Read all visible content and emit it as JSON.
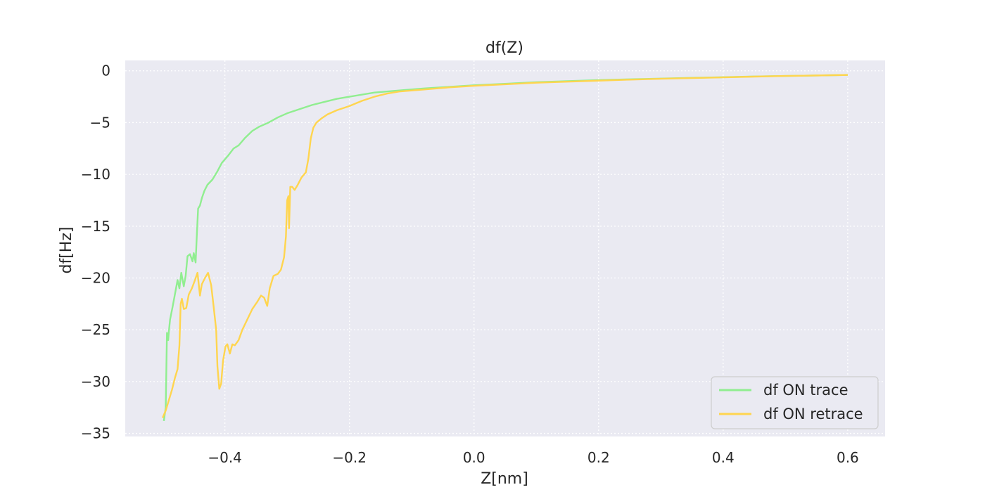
{
  "chart_data": {
    "type": "line",
    "title": "df(Z)",
    "xlabel": "Z[nm]",
    "ylabel": "df[Hz]",
    "xlim": [
      -0.56,
      0.66
    ],
    "ylim": [
      -35.3,
      1.0
    ],
    "x_ticks": [
      -0.4,
      -0.2,
      0.0,
      0.2,
      0.4,
      0.6
    ],
    "x_tick_labels": [
      "−0.4",
      "−0.2",
      "0.0",
      "0.2",
      "0.4",
      "0.6"
    ],
    "y_ticks": [
      0,
      -5,
      -10,
      -15,
      -20,
      -25,
      -30,
      -35
    ],
    "y_tick_labels": [
      "0",
      "−5",
      "−10",
      "−15",
      "−20",
      "−25",
      "−30",
      "−35"
    ],
    "grid": true,
    "legend_position": "lower-right",
    "colors": {
      "background": "#eaeaf2",
      "grid": "#ffffff"
    },
    "series": [
      {
        "name": "df ON trace",
        "color": "#90ee90",
        "points": [
          [
            -0.498,
            -33.8
          ],
          [
            -0.495,
            -32.5
          ],
          [
            -0.493,
            -25.3
          ],
          [
            -0.491,
            -26.0
          ],
          [
            -0.49,
            -25.2
          ],
          [
            -0.488,
            -24.0
          ],
          [
            -0.484,
            -22.8
          ],
          [
            -0.48,
            -21.5
          ],
          [
            -0.476,
            -20.2
          ],
          [
            -0.473,
            -21.0
          ],
          [
            -0.47,
            -19.5
          ],
          [
            -0.466,
            -20.8
          ],
          [
            -0.463,
            -19.8
          ],
          [
            -0.46,
            -17.9
          ],
          [
            -0.456,
            -17.7
          ],
          [
            -0.452,
            -18.4
          ],
          [
            -0.45,
            -17.6
          ],
          [
            -0.447,
            -18.5
          ],
          [
            -0.445,
            -15.8
          ],
          [
            -0.443,
            -13.3
          ],
          [
            -0.44,
            -13.0
          ],
          [
            -0.437,
            -12.3
          ],
          [
            -0.433,
            -11.6
          ],
          [
            -0.428,
            -11.0
          ],
          [
            -0.42,
            -10.5
          ],
          [
            -0.412,
            -9.7
          ],
          [
            -0.405,
            -8.9
          ],
          [
            -0.395,
            -8.2
          ],
          [
            -0.386,
            -7.5
          ],
          [
            -0.378,
            -7.2
          ],
          [
            -0.368,
            -6.5
          ],
          [
            -0.356,
            -5.8
          ],
          [
            -0.345,
            -5.4
          ],
          [
            -0.33,
            -5.0
          ],
          [
            -0.315,
            -4.5
          ],
          [
            -0.3,
            -4.1
          ],
          [
            -0.28,
            -3.7
          ],
          [
            -0.26,
            -3.3
          ],
          [
            -0.24,
            -3.0
          ],
          [
            -0.22,
            -2.7
          ],
          [
            -0.2,
            -2.5
          ],
          [
            -0.16,
            -2.1
          ],
          [
            -0.12,
            -1.9
          ],
          [
            -0.08,
            -1.7
          ],
          [
            -0.04,
            -1.55
          ],
          [
            0.0,
            -1.4
          ],
          [
            0.05,
            -1.25
          ],
          [
            0.1,
            -1.1
          ],
          [
            0.15,
            -1.0
          ],
          [
            0.2,
            -0.9
          ],
          [
            0.25,
            -0.82
          ],
          [
            0.3,
            -0.75
          ],
          [
            0.35,
            -0.68
          ],
          [
            0.4,
            -0.62
          ],
          [
            0.45,
            -0.55
          ],
          [
            0.5,
            -0.5
          ],
          [
            0.55,
            -0.45
          ],
          [
            0.6,
            -0.4
          ]
        ]
      },
      {
        "name": "df ON retrace",
        "color": "#ffd54f",
        "points": [
          [
            -0.5,
            -33.5
          ],
          [
            -0.495,
            -32.8
          ],
          [
            -0.49,
            -31.8
          ],
          [
            -0.485,
            -30.8
          ],
          [
            -0.48,
            -29.6
          ],
          [
            -0.476,
            -28.8
          ],
          [
            -0.473,
            -26.5
          ],
          [
            -0.471,
            -22.5
          ],
          [
            -0.469,
            -22.0
          ],
          [
            -0.466,
            -23.0
          ],
          [
            -0.462,
            -22.9
          ],
          [
            -0.458,
            -21.6
          ],
          [
            -0.453,
            -21.0
          ],
          [
            -0.448,
            -20.2
          ],
          [
            -0.444,
            -19.5
          ],
          [
            -0.44,
            -21.7
          ],
          [
            -0.437,
            -20.6
          ],
          [
            -0.432,
            -20.0
          ],
          [
            -0.427,
            -19.5
          ],
          [
            -0.422,
            -20.7
          ],
          [
            -0.418,
            -22.8
          ],
          [
            -0.414,
            -25.0
          ],
          [
            -0.412,
            -28.5
          ],
          [
            -0.409,
            -30.7
          ],
          [
            -0.406,
            -30.2
          ],
          [
            -0.403,
            -28.0
          ],
          [
            -0.399,
            -26.6
          ],
          [
            -0.396,
            -26.4
          ],
          [
            -0.392,
            -27.3
          ],
          [
            -0.388,
            -26.4
          ],
          [
            -0.384,
            -26.5
          ],
          [
            -0.378,
            -26.0
          ],
          [
            -0.372,
            -25.0
          ],
          [
            -0.364,
            -24.0
          ],
          [
            -0.356,
            -23.0
          ],
          [
            -0.348,
            -22.3
          ],
          [
            -0.342,
            -21.7
          ],
          [
            -0.337,
            -21.9
          ],
          [
            -0.332,
            -22.7
          ],
          [
            -0.328,
            -21.0
          ],
          [
            -0.322,
            -19.8
          ],
          [
            -0.315,
            -19.6
          ],
          [
            -0.31,
            -19.2
          ],
          [
            -0.305,
            -18.0
          ],
          [
            -0.302,
            -16.0
          ],
          [
            -0.3,
            -12.5
          ],
          [
            -0.298,
            -12.1
          ],
          [
            -0.297,
            -15.2
          ],
          [
            -0.295,
            -11.2
          ],
          [
            -0.292,
            -11.2
          ],
          [
            -0.288,
            -11.5
          ],
          [
            -0.283,
            -11.0
          ],
          [
            -0.277,
            -10.3
          ],
          [
            -0.27,
            -9.8
          ],
          [
            -0.266,
            -8.5
          ],
          [
            -0.262,
            -6.5
          ],
          [
            -0.258,
            -5.5
          ],
          [
            -0.253,
            -5.0
          ],
          [
            -0.245,
            -4.6
          ],
          [
            -0.235,
            -4.2
          ],
          [
            -0.22,
            -3.8
          ],
          [
            -0.2,
            -3.4
          ],
          [
            -0.18,
            -2.9
          ],
          [
            -0.16,
            -2.5
          ],
          [
            -0.14,
            -2.2
          ],
          [
            -0.12,
            -2.0
          ],
          [
            -0.08,
            -1.8
          ],
          [
            -0.04,
            -1.6
          ],
          [
            0.0,
            -1.45
          ],
          [
            0.05,
            -1.3
          ],
          [
            0.1,
            -1.15
          ],
          [
            0.15,
            -1.05
          ],
          [
            0.2,
            -0.95
          ],
          [
            0.25,
            -0.85
          ],
          [
            0.3,
            -0.77
          ],
          [
            0.35,
            -0.7
          ],
          [
            0.4,
            -0.63
          ],
          [
            0.45,
            -0.56
          ],
          [
            0.5,
            -0.5
          ],
          [
            0.55,
            -0.45
          ],
          [
            0.6,
            -0.4
          ]
        ]
      }
    ]
  }
}
